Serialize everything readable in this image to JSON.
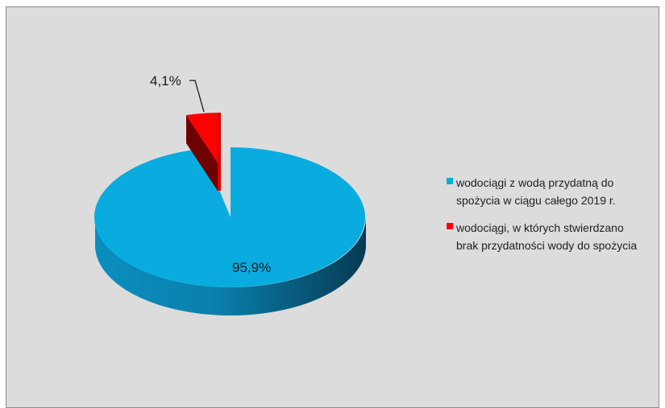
{
  "chart_data": {
    "type": "pie",
    "style": "3d-exploded",
    "slices": [
      {
        "label": "wodociągi z wodą przydatną do spożycia w ciągu całego 2019 r.",
        "value": 95.9,
        "display": "95,9%",
        "color": "#0aacdf"
      },
      {
        "label": "wodociągi, w których stwierdzano brak przydatności wody do spożycia",
        "value": 4.1,
        "display": "4,1%",
        "color": "#ff0000"
      }
    ],
    "legend_position": "right"
  },
  "legend": {
    "items": [
      {
        "line1": "wodociągi z wodą przydatną do",
        "line2": "spożycia w ciągu całego 2019 r.",
        "color": "#0aacdf"
      },
      {
        "line1": "wodociągi, w których stwierdzano",
        "line2": "brak przydatności wody do spożycia",
        "color": "#ff0000"
      }
    ]
  }
}
